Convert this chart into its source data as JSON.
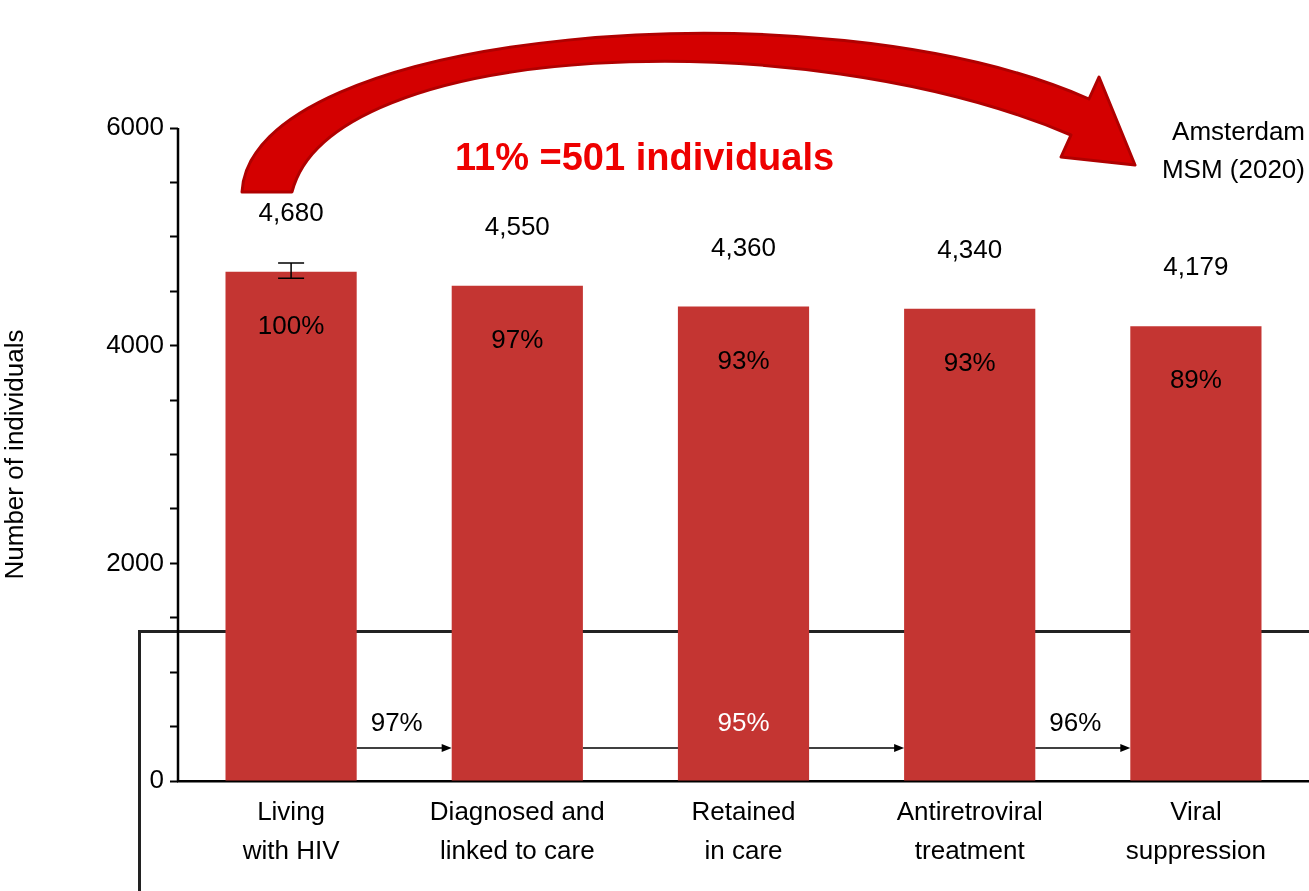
{
  "chart_data": {
    "type": "bar",
    "ylabel": "Number of individuals",
    "categories": [
      "Living with HIV",
      "Diagnosed and linked to care",
      "Retained in care",
      "Antiretroviral treatment",
      "Viral suppression"
    ],
    "values": [
      4680,
      4550,
      4360,
      4340,
      4179
    ],
    "value_labels": [
      "4,680",
      "4,550",
      "4,360",
      "4,340",
      "4,179"
    ],
    "errors": [
      [
        4620,
        4760
      ],
      null,
      null,
      null,
      null
    ],
    "color": "#c43532",
    "ylim": [
      0,
      6000
    ],
    "yticks": [
      0,
      {
        "value": 500,
        "label": null
      },
      {
        "value": 1000,
        "label": null
      },
      {
        "value": 1500,
        "label": null
      },
      2000,
      {
        "value": 2500,
        "label": null
      },
      {
        "value": 3000,
        "label": null
      },
      {
        "value": 3500,
        "label": null
      },
      4000,
      {
        "value": 4500,
        "label": null
      },
      {
        "value": 5000,
        "label": null
      },
      {
        "value": 5500,
        "label": null
      },
      6000
    ],
    "grid": false,
    "legend": false,
    "annotations": [
      "11% =501 individuals",
      "Amsterdam MSM (2020)",
      {
        "text": "100%",
        "x": "Living with HIV",
        "y": 4680
      },
      {
        "text": "97%",
        "x": "Diagnosed and linked to care",
        "y": 4550
      },
      {
        "text": "93%",
        "x": "Retained in care",
        "y": 4360
      },
      {
        "text": "93%",
        "x": "Antiretroviral treatment",
        "y": 4340
      },
      {
        "text": "89%",
        "x": "Viral suppression",
        "y": 4179
      },
      "97%",
      "95%",
      "96%"
    ]
  }
}
